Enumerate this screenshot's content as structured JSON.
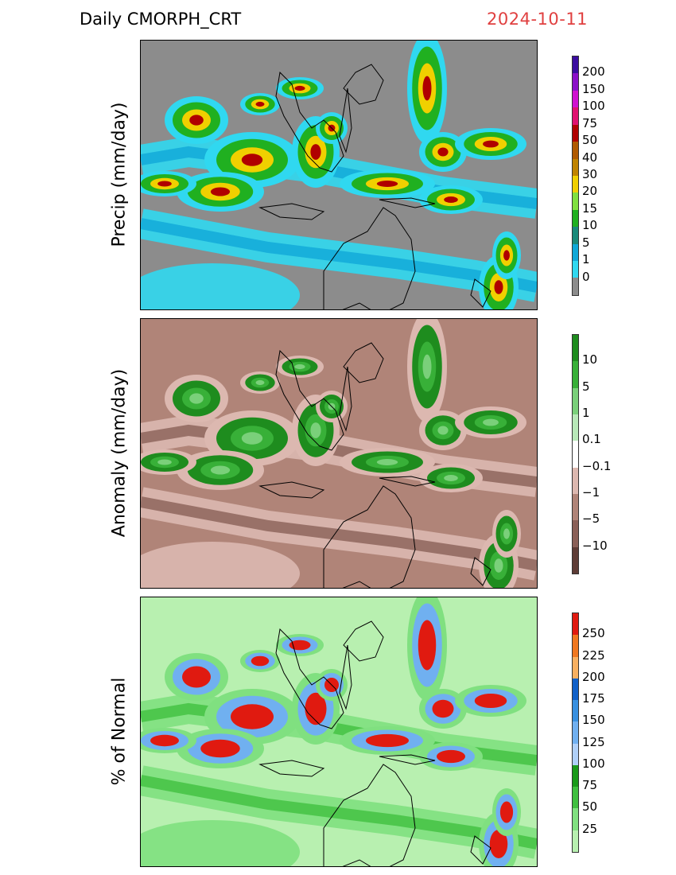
{
  "header": {
    "product": "Daily  CMORPH_CRT",
    "date": "2024-10-11"
  },
  "panels": [
    {
      "id": "precip",
      "ylabel": "Precip  (mm/day)",
      "colorbar": {
        "labels": [
          "200",
          "150",
          "100",
          "75",
          "50",
          "40",
          "30",
          "20",
          "15",
          "10",
          "5",
          "1",
          "0"
        ],
        "colors": [
          "#3b0ca0",
          "#8b10c8",
          "#d010d0",
          "#e01070",
          "#b00000",
          "#b05a00",
          "#c08400",
          "#f0d000",
          "#80e040",
          "#20b020",
          "#1a8a7a",
          "#10a8d8",
          "#30d8f0",
          "#8c8c8c"
        ]
      },
      "palette": {
        "bg": "#8c8c8c",
        "light": "#30d8f0",
        "mid": "#10a8d8",
        "green": "#20b020",
        "yellow": "#f0d000",
        "red": "#b00000",
        "magenta": "#d010d0",
        "land": "#8c8c8c"
      }
    },
    {
      "id": "anomaly",
      "ylabel": "Anomaly  (mm/day)",
      "colorbar": {
        "labels": [
          "10",
          "5",
          "1",
          "0.1",
          "−0.1",
          "−1",
          "−5",
          "−10"
        ],
        "colors": [
          "#1e8c1e",
          "#38b038",
          "#7ad07a",
          "#b8e8b8",
          "#ffffff",
          "#dcb8b0",
          "#b08478",
          "#8a6058",
          "#5e3c36"
        ]
      },
      "palette": {
        "bg": "#b08478",
        "light": "#dcb8b0",
        "mid": "#8a6058",
        "green": "#1e8c1e",
        "yellow": "#38b038",
        "red": "#7ad07a",
        "magenta": "#ffffff",
        "land": "#dcb8b0"
      }
    },
    {
      "id": "percent",
      "ylabel": "% of Normal",
      "colorbar": {
        "labels": [
          "250",
          "225",
          "200",
          "175",
          "150",
          "125",
          "100",
          "75",
          "50",
          "25"
        ],
        "colors": [
          "#e01a10",
          "#f07820",
          "#f8b060",
          "#1060c8",
          "#3890e0",
          "#70b0f0",
          "#b0d0f8",
          "#1a9a1a",
          "#40c040",
          "#80e080",
          "#b8f0b0"
        ]
      },
      "palette": {
        "bg": "#b8f0b0",
        "light": "#80e080",
        "mid": "#40c040",
        "green": "#70b0f0",
        "yellow": "#e01a10",
        "red": "#e01a10",
        "magenta": "#e01a10",
        "land": "#b8f0b0"
      }
    }
  ]
}
